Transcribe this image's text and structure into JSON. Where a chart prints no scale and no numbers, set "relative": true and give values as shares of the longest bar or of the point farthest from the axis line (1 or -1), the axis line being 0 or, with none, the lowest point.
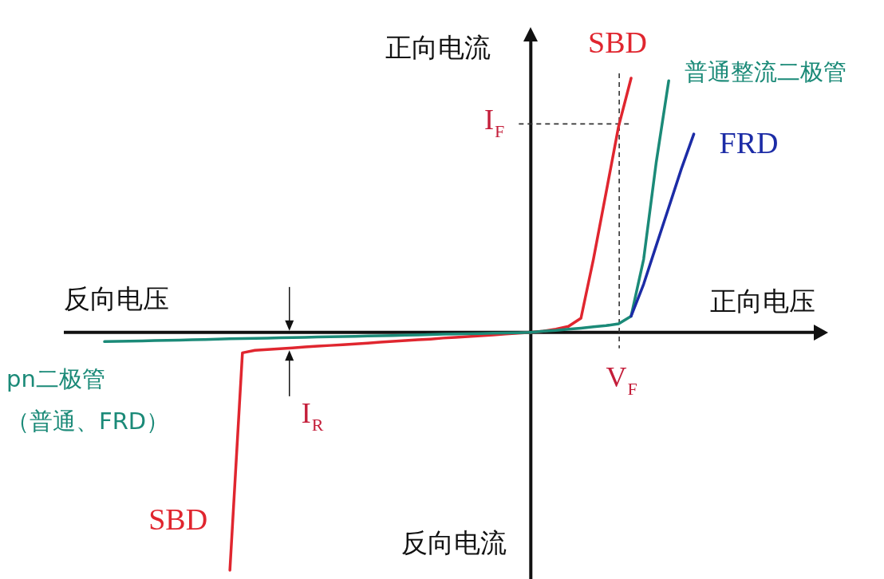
{
  "chart_data": {
    "type": "line",
    "relative": true,
    "xlabel": "正向电压",
    "ylabel": "正向电流",
    "categories": [
      null,
      null,
      null,
      null,
      null,
      null,
      null,
      null,
      null,
      null,
      null,
      null,
      null,
      null,
      null,
      null,
      null,
      null,
      null,
      null,
      null,
      null,
      null,
      null,
      null,
      null,
      null,
      null,
      null,
      null,
      null,
      null,
      null,
      null,
      null,
      null,
      null,
      null,
      null,
      null,
      null,
      null,
      null,
      null,
      null,
      null,
      null,
      null
    ],
    "series": [
      {
        "name": "SBD",
        "color": "#e0262f",
        "values": [
          null,
          null,
          null,
          null,
          null,
          null,
          null,
          null,
          null,
          null,
          -0.935,
          -0.08,
          -0.07,
          -0.067,
          -0.064,
          -0.061,
          -0.057,
          -0.054,
          -0.051,
          -0.048,
          -0.045,
          -0.042,
          -0.038,
          -0.035,
          -0.032,
          -0.029,
          -0.026,
          -0.022,
          -0.019,
          -0.016,
          -0.013,
          -0.01,
          -0.006,
          -0.003,
          0,
          null,
          null,
          null,
          null,
          null,
          null,
          null,
          null,
          null,
          null,
          null,
          null,
          null
        ]
      },
      {
        "name": "SBD",
        "color": "#e0262f",
        "values": [
          null,
          null,
          null,
          null,
          null,
          null,
          null,
          null,
          null,
          null,
          null,
          null,
          null,
          null,
          null,
          null,
          null,
          null,
          null,
          null,
          null,
          null,
          null,
          null,
          null,
          null,
          null,
          null,
          null,
          null,
          null,
          null,
          null,
          null,
          0,
          0.005,
          0.013,
          0.024,
          0.056,
          0.289,
          0.549,
          0.81,
          1,
          null,
          null,
          null,
          null,
          null
        ]
      },
      {
        "name": "pn二极管（普通、FRD）",
        "color": "#1b8a78",
        "values": [
          -0.036,
          -0.035,
          -0.034,
          -0.033,
          -0.032,
          -0.031,
          -0.03,
          -0.029,
          -0.028,
          -0.026,
          -0.025,
          -0.024,
          -0.023,
          -0.022,
          -0.021,
          -0.02,
          -0.019,
          -0.018,
          -0.017,
          -0.016,
          -0.015,
          -0.014,
          -0.013,
          -0.012,
          -0.011,
          -0.01,
          -0.008,
          -0.007,
          -0.006,
          -0.005,
          -0.004,
          -0.003,
          -0.002,
          -0.001,
          0,
          null,
          null,
          null,
          null,
          null,
          null,
          null,
          null,
          null,
          null,
          null,
          null,
          null
        ]
      },
      {
        "name": "普通整流二极管",
        "color": "#1b8a78",
        "values": [
          null,
          null,
          null,
          null,
          null,
          null,
          null,
          null,
          null,
          null,
          null,
          null,
          null,
          null,
          null,
          null,
          null,
          null,
          null,
          null,
          null,
          null,
          null,
          null,
          null,
          null,
          null,
          null,
          null,
          null,
          null,
          null,
          null,
          null,
          0,
          0.005,
          0.008,
          0.013,
          0.017,
          0.022,
          0.027,
          0.034,
          0.064,
          0.288,
          0.668,
          0.99,
          null,
          null
        ]
      },
      {
        "name": "FRD",
        "color": "#1c2ca6",
        "values": [
          null,
          null,
          null,
          null,
          null,
          null,
          null,
          null,
          null,
          null,
          null,
          null,
          null,
          null,
          null,
          null,
          null,
          null,
          null,
          null,
          null,
          null,
          null,
          null,
          null,
          null,
          null,
          null,
          null,
          null,
          null,
          null,
          null,
          null,
          null,
          null,
          null,
          null,
          null,
          null,
          null,
          null,
          0.064,
          0.19,
          0.341,
          0.491,
          0.642,
          0.78
        ]
      }
    ],
    "ref_lines": [
      {
        "axis": "y",
        "value": 0.82,
        "label": "I$_{F}$",
        "color": "#333333",
        "line_style": "dashed"
      },
      {
        "axis": "x",
        "label": "V$_{F}$",
        "color": "#333333",
        "line_style": "dashed"
      }
    ],
    "annotations": [
      "反向电压",
      "反向电流",
      "I$_{R}$"
    ]
  }
}
